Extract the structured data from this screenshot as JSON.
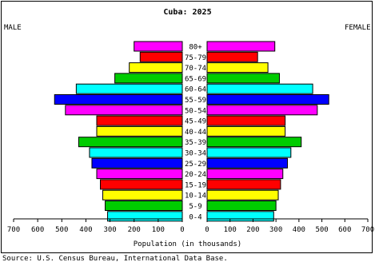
{
  "chart_data": {
    "type": "bar",
    "title": "Cuba: 2025",
    "left_label": "MALE",
    "right_label": "FEMALE",
    "xlabel": "Population (in thousands)",
    "source": "Source: U.S. Census Bureau, International Data Base.",
    "categories": [
      "80+",
      "75-79",
      "70-74",
      "65-69",
      "60-64",
      "55-59",
      "50-54",
      "45-49",
      "40-44",
      "35-39",
      "30-34",
      "25-29",
      "20-24",
      "15-19",
      "10-14",
      "5-9",
      "0-4"
    ],
    "xlim": [
      0,
      700
    ],
    "ticks": [
      0,
      100,
      200,
      300,
      400,
      500,
      600,
      700
    ],
    "series": [
      {
        "name": "MALE",
        "values": [
          200,
          175,
          220,
          280,
          440,
          530,
          485,
          355,
          355,
          430,
          385,
          375,
          355,
          340,
          330,
          320,
          310
        ]
      },
      {
        "name": "FEMALE",
        "values": [
          295,
          220,
          265,
          315,
          460,
          530,
          480,
          340,
          340,
          410,
          365,
          350,
          330,
          320,
          310,
          300,
          290
        ]
      }
    ],
    "colors": [
      "#ff00ff",
      "#ff0000",
      "#ffff00",
      "#00cc00",
      "#00ffff",
      "#0000ff",
      "#ff00ff",
      "#ff0000",
      "#ffff00",
      "#00cc00",
      "#00ffff",
      "#0000ff",
      "#ff00ff",
      "#ff0000",
      "#ffff00",
      "#00cc00",
      "#00ffff"
    ],
    "grid": false
  }
}
